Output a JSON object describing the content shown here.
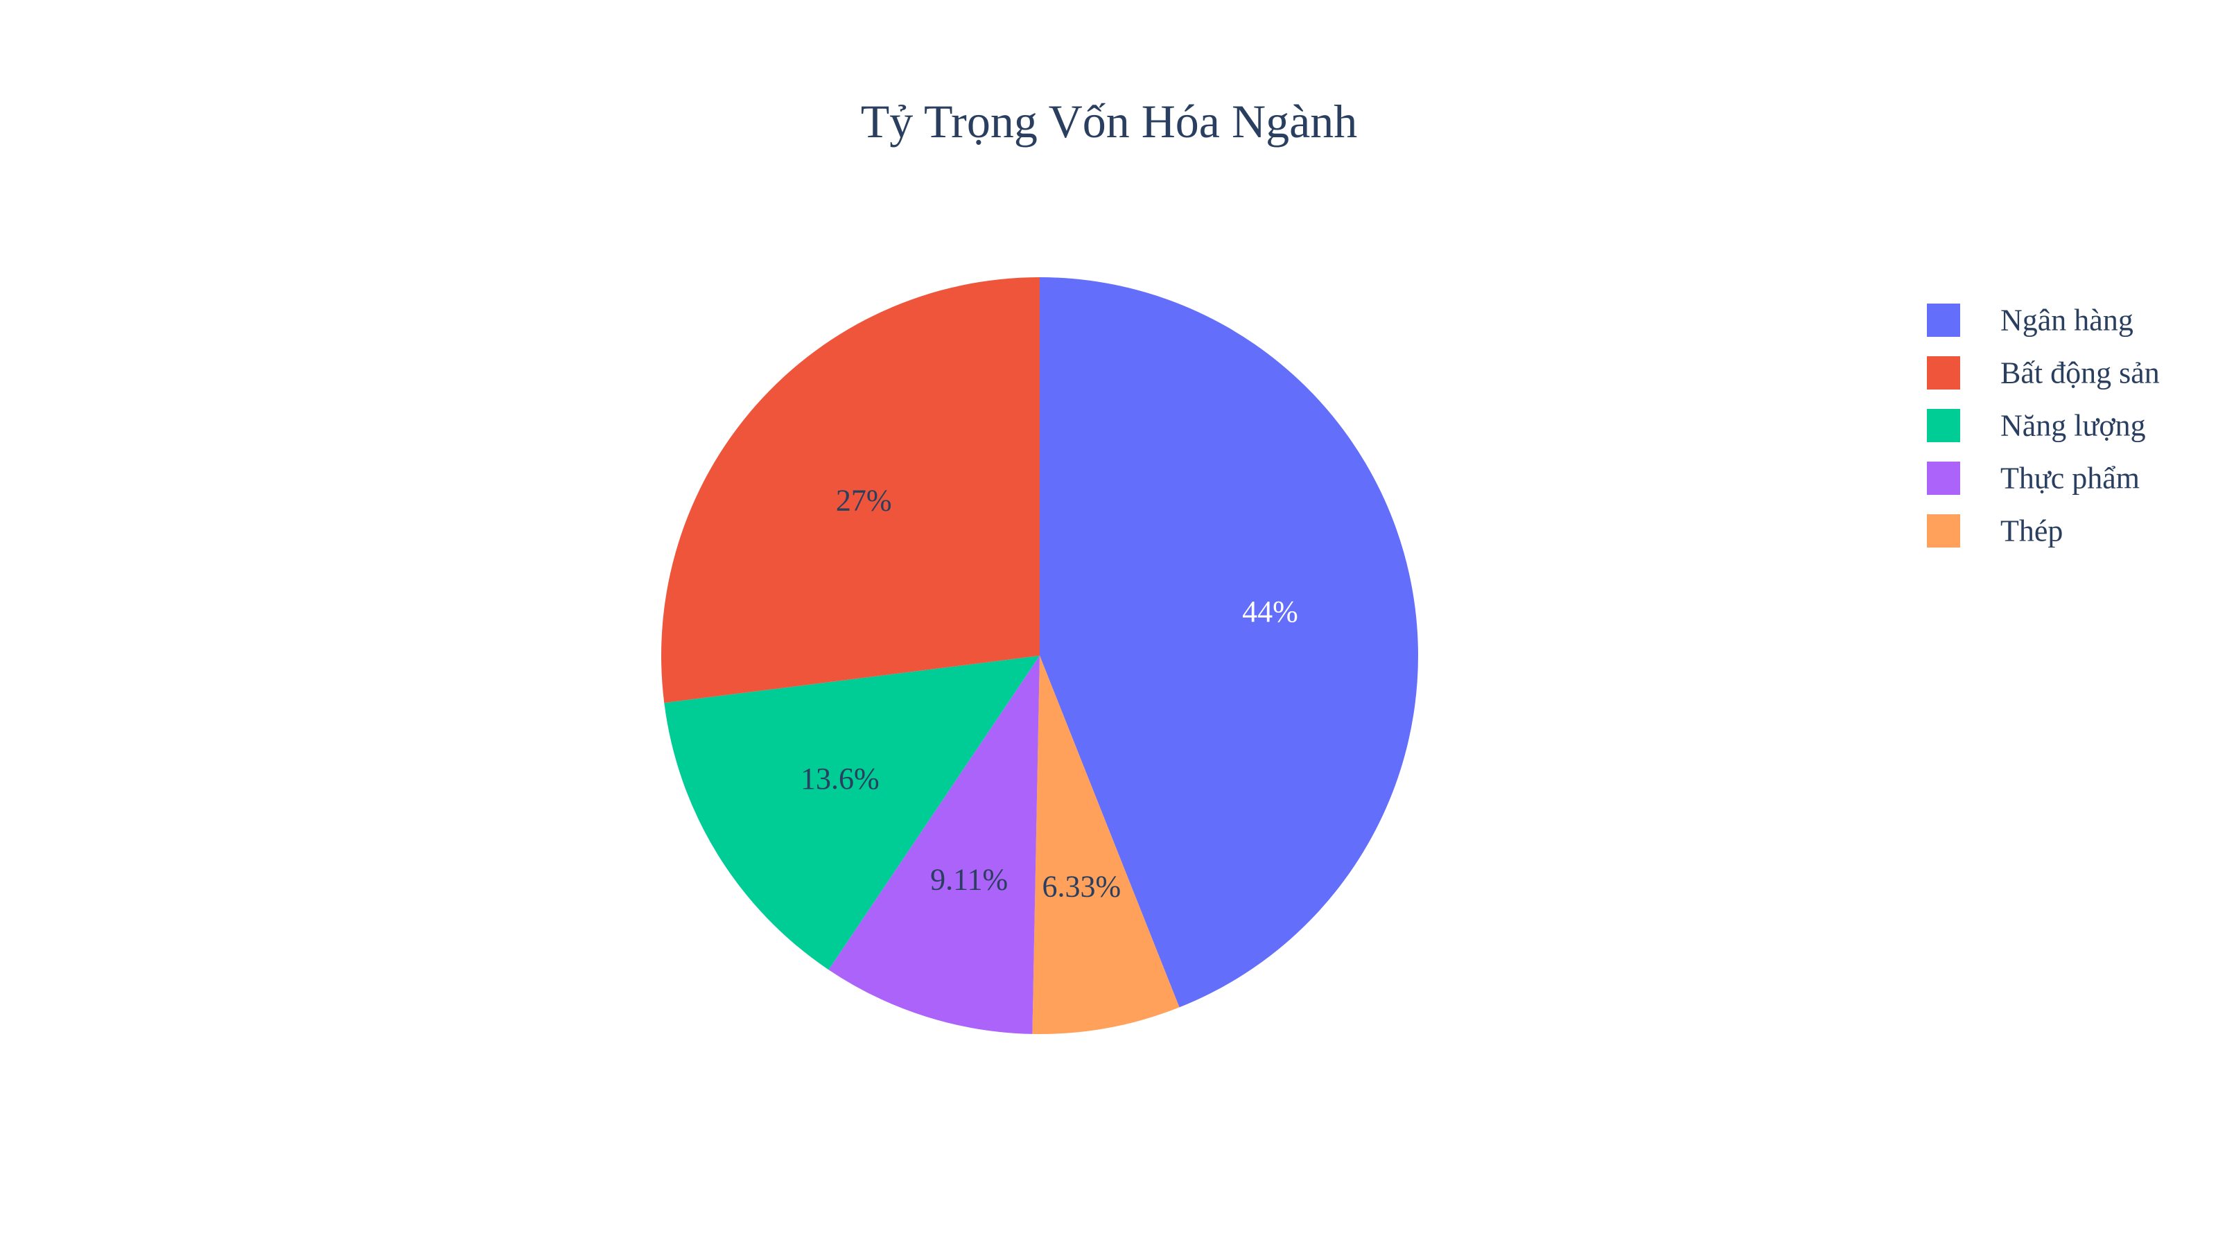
{
  "chart_data": {
    "type": "pie",
    "title": "Tỷ Trọng Vốn Hóa Ngành",
    "slices": [
      {
        "label": "Ngân hàng",
        "percent": 44.0,
        "display": "44%",
        "color": "#636efa",
        "label_color": "#ffffff"
      },
      {
        "label": "Thép",
        "percent": 6.33,
        "display": "6.33%",
        "color": "#ffa15a",
        "label_color": "#2a3f5f"
      },
      {
        "label": "Thực phẩm",
        "percent": 9.11,
        "display": "9.11%",
        "color": "#ab63fa",
        "label_color": "#2a3f5f"
      },
      {
        "label": "Năng lượng",
        "percent": 13.6,
        "display": "13.6%",
        "color": "#00cc96",
        "label_color": "#2a3f5f"
      },
      {
        "label": "Bất động sản",
        "percent": 27.0,
        "display": "27%",
        "color": "#ef553b",
        "label_color": "#2a3f5f"
      }
    ],
    "legend": {
      "placement": "top-right",
      "order": [
        "Ngân hàng",
        "Bất động sản",
        "Năng lượng",
        "Thực phẩm",
        "Thép"
      ]
    },
    "text_color": "#2a3f5f"
  }
}
